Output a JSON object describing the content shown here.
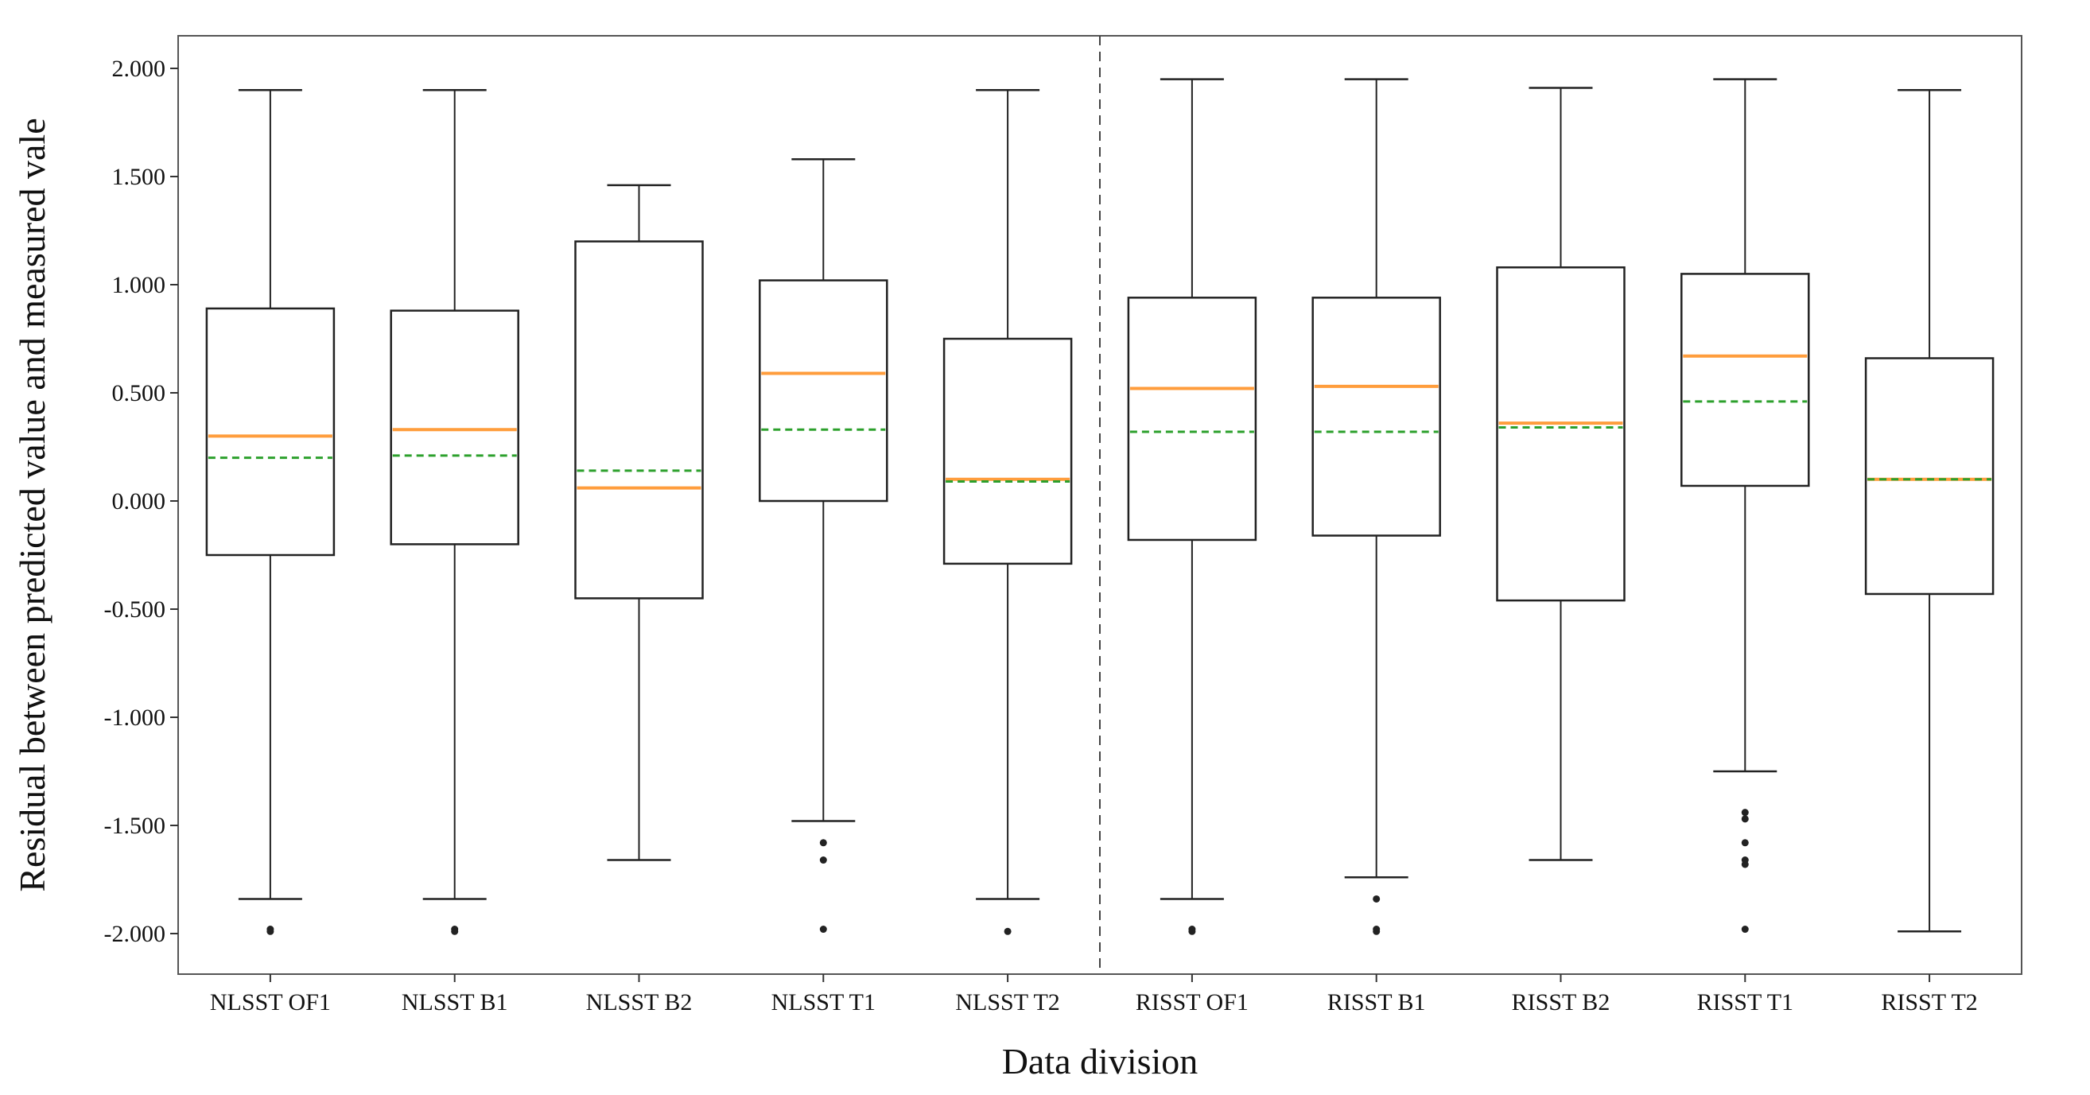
{
  "chart_data": {
    "type": "box",
    "title": "",
    "xlabel": "Data division",
    "ylabel": "Residual between predicted value and measured vale",
    "ylim": [
      -2.2,
      2.2
    ],
    "yticks": [
      -2.0,
      -1.5,
      -1.0,
      -0.5,
      0.0,
      0.5,
      1.0,
      1.5,
      2.0
    ],
    "ytick_labels": [
      "-2.000",
      "-1.500",
      "-1.000",
      "-0.500",
      "0.000",
      "0.500",
      "1.000",
      "1.500",
      "2.000"
    ],
    "categories": [
      "NLSST OF1",
      "NLSST B1",
      "NLSST B2",
      "NLSST T1",
      "NLSST T2",
      "RISST OF1",
      "RISST B1",
      "RISST B2",
      "RISST T1",
      "RISST T2"
    ],
    "separator_after_index": 4,
    "median_color": "#ff9d3c",
    "mean_color": "#2ca02c",
    "grid": false,
    "boxes": [
      {
        "whisker_low": -1.84,
        "q1": -0.25,
        "median": 0.3,
        "mean": 0.2,
        "q3": 0.89,
        "whisker_high": 1.9,
        "outliers": [
          -1.98,
          -1.99
        ]
      },
      {
        "whisker_low": -1.84,
        "q1": -0.2,
        "median": 0.33,
        "mean": 0.21,
        "q3": 0.88,
        "whisker_high": 1.9,
        "outliers": [
          -1.98,
          -1.99
        ]
      },
      {
        "whisker_low": -1.66,
        "q1": -0.45,
        "median": 0.06,
        "mean": 0.14,
        "q3": 1.2,
        "whisker_high": 1.46,
        "outliers": []
      },
      {
        "whisker_low": -1.48,
        "q1": 0.0,
        "median": 0.59,
        "mean": 0.33,
        "q3": 1.02,
        "whisker_high": 1.58,
        "outliers": [
          -1.58,
          -1.66,
          -1.98
        ]
      },
      {
        "whisker_low": -1.84,
        "q1": -0.29,
        "median": 0.1,
        "mean": 0.09,
        "q3": 0.75,
        "whisker_high": 1.9,
        "outliers": [
          -1.99
        ]
      },
      {
        "whisker_low": -1.84,
        "q1": -0.18,
        "median": 0.52,
        "mean": 0.32,
        "q3": 0.94,
        "whisker_high": 1.95,
        "outliers": [
          -1.98,
          -1.99
        ]
      },
      {
        "whisker_low": -1.74,
        "q1": -0.16,
        "median": 0.53,
        "mean": 0.32,
        "q3": 0.94,
        "whisker_high": 1.95,
        "outliers": [
          -1.84,
          -1.98,
          -1.99
        ]
      },
      {
        "whisker_low": -1.66,
        "q1": -0.46,
        "median": 0.36,
        "mean": 0.34,
        "q3": 1.08,
        "whisker_high": 1.91,
        "outliers": []
      },
      {
        "whisker_low": -1.25,
        "q1": 0.07,
        "median": 0.67,
        "mean": 0.46,
        "q3": 1.05,
        "whisker_high": 1.95,
        "outliers": [
          -1.44,
          -1.47,
          -1.58,
          -1.66,
          -1.68,
          -1.98
        ]
      },
      {
        "whisker_low": -1.99,
        "q1": -0.43,
        "median": 0.1,
        "mean": 0.1,
        "q3": 0.66,
        "whisker_high": 1.9,
        "outliers": []
      }
    ]
  }
}
